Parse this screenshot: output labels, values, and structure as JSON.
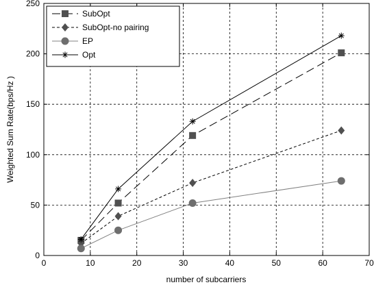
{
  "chart_data": {
    "type": "line",
    "xlabel": "number of subcarriers",
    "ylabel": "Weighted Sum Rate(bps/Hz )",
    "xlim": [
      0,
      70
    ],
    "ylim": [
      0,
      250
    ],
    "xticks": [
      0,
      10,
      20,
      30,
      40,
      50,
      60,
      70
    ],
    "yticks": [
      0,
      50,
      100,
      150,
      200,
      250
    ],
    "grid": true,
    "legend_position": "top-left",
    "x": [
      8,
      16,
      32,
      64
    ],
    "series": [
      {
        "name": "SubOpt",
        "values": [
          15,
          52,
          119,
          201
        ],
        "marker": "square",
        "dash": "long-dash",
        "color": "#000000",
        "marker_color": "#505050"
      },
      {
        "name": "SubOpt-no pairing",
        "values": [
          12,
          39,
          72,
          124
        ],
        "marker": "diamond",
        "dash": "short-dash",
        "color": "#000000",
        "marker_color": "#505050"
      },
      {
        "name": "EP",
        "values": [
          7,
          25,
          52,
          74
        ],
        "marker": "circle",
        "dash": "solid",
        "color": "#808080",
        "marker_color": "#6e6e6e"
      },
      {
        "name": "Opt",
        "values": [
          16,
          66,
          133,
          218
        ],
        "marker": "asterisk",
        "dash": "solid",
        "color": "#000000",
        "marker_color": "#000000"
      }
    ]
  }
}
